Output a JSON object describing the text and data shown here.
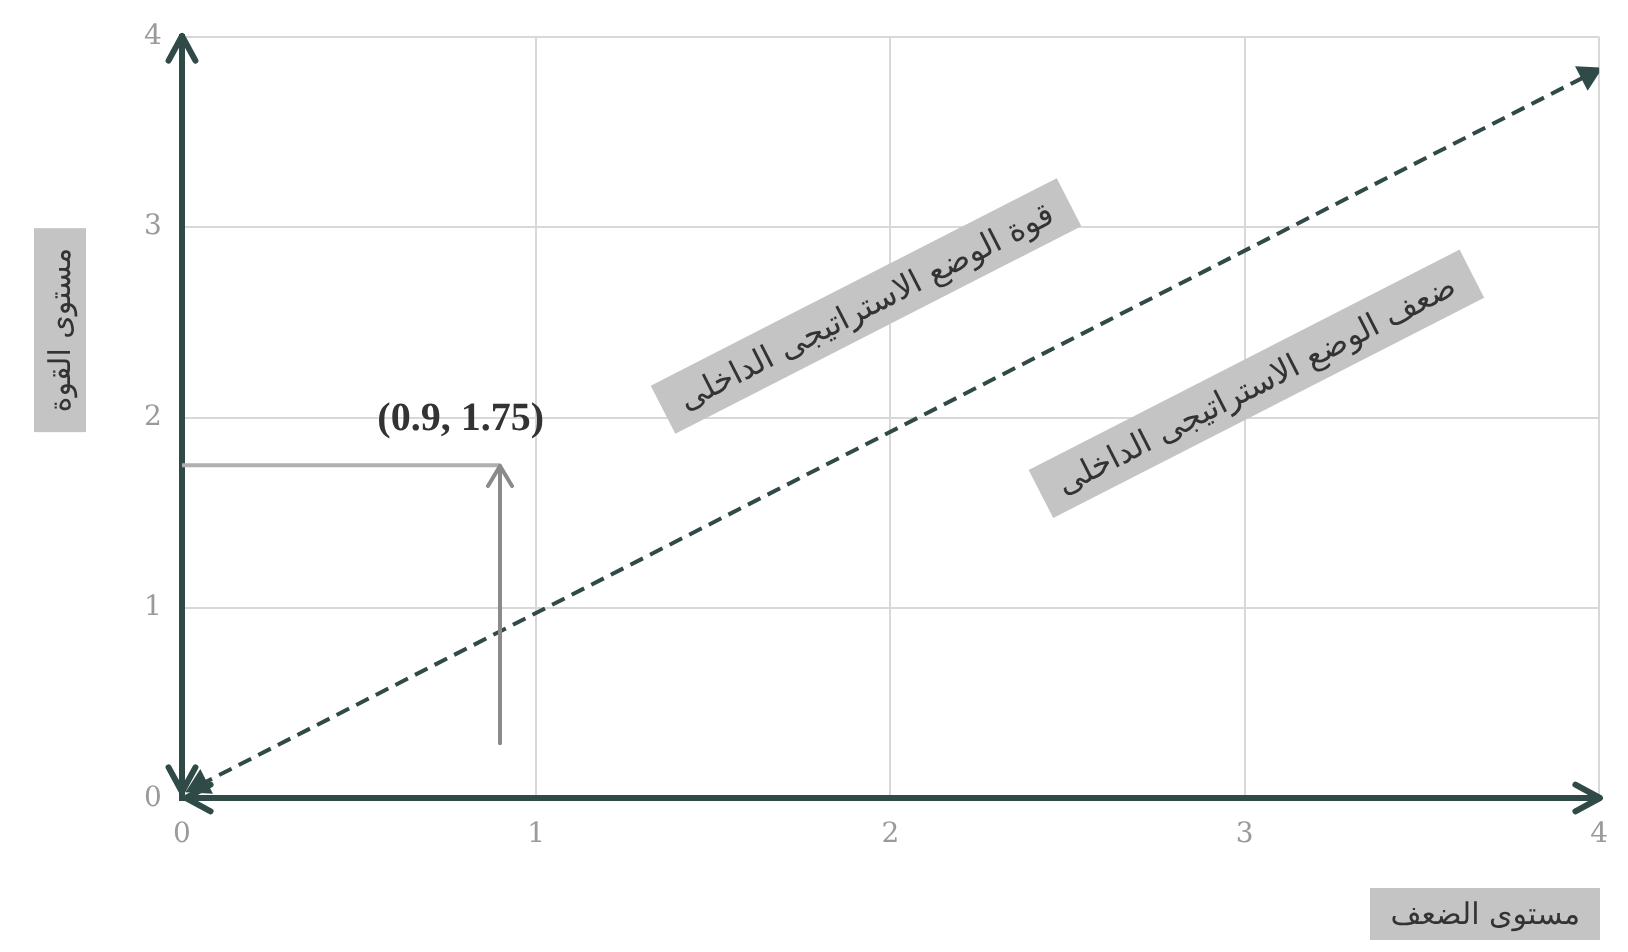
{
  "chart_data": {
    "type": "line",
    "xlabel": "مستوى الضعف",
    "ylabel": "مستوى القوة",
    "xlim": [
      0,
      4
    ],
    "ylim": [
      0,
      4
    ],
    "xticks": [
      0,
      1,
      2,
      3,
      4
    ],
    "yticks": [
      0,
      1,
      2,
      3,
      4
    ],
    "grid": true,
    "legend": false,
    "marker": "none",
    "series": [
      {
        "color": "#2f4a47",
        "x": [
          0.05,
          3.97
        ],
        "values": [
          0.07,
          3.8
        ],
        "line_style": "dashed",
        "marker": "triangle"
      },
      {
        "color": "#b0b0b0",
        "x": [
          0,
          0.9
        ],
        "values": [
          1.75,
          1.75
        ]
      }
    ],
    "annotations": [
      {
        "text": "(0.9, 1.75)",
        "x": 0.9,
        "y": 1.75
      },
      "قوة الوضع الاستراتيجى الداخلى",
      "ضعف الوضع الاستراتيجى الداخلى"
    ]
  }
}
